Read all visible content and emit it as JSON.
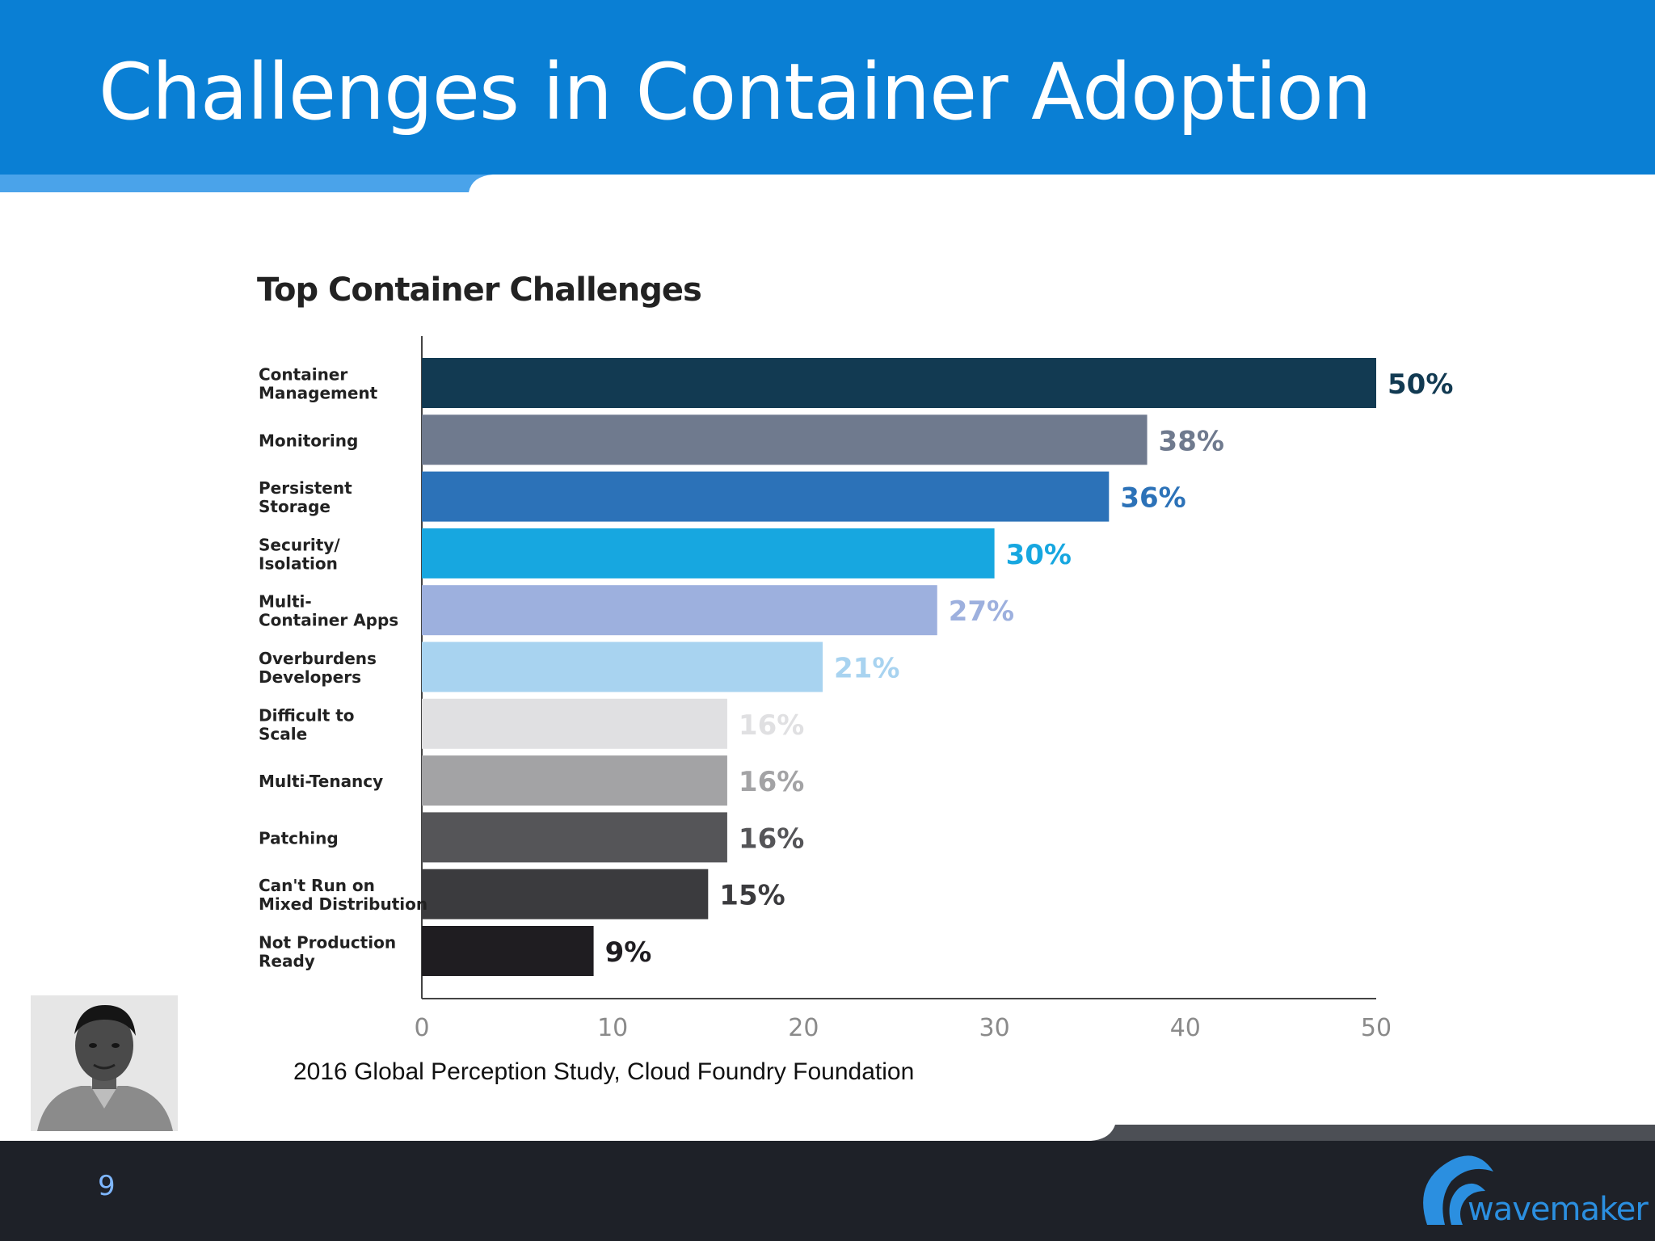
{
  "slide": {
    "title": "Challenges in Container Adoption",
    "page_number": "9",
    "source": "2016 Global Perception Study, Cloud Foundry Foundation",
    "logo_text": "wavemaker",
    "colors": {
      "header": "#0a7fd4",
      "header_accent": "#4aa3ea",
      "footer": "#1e2128",
      "page_number": "#7fb7ff",
      "logo": "#2b8fe0"
    }
  },
  "chart_data": {
    "type": "bar",
    "orientation": "horizontal",
    "title": "Top Container Challenges",
    "categories": [
      [
        "Container",
        "Management"
      ],
      [
        "Monitoring"
      ],
      [
        "Persistent",
        "Storage"
      ],
      [
        "Security/",
        "Isolation"
      ],
      [
        "Multi-",
        "Container Apps"
      ],
      [
        "Overburdens",
        "Developers"
      ],
      [
        "Difficult to",
        "Scale"
      ],
      [
        "Multi-Tenancy"
      ],
      [
        "Patching"
      ],
      [
        "Can't Run on",
        "Mixed Distribution"
      ],
      [
        "Not Production",
        "Ready"
      ]
    ],
    "values": [
      50,
      38,
      36,
      30,
      27,
      21,
      16,
      16,
      16,
      15,
      9
    ],
    "value_labels": [
      "50%",
      "38%",
      "36%",
      "30%",
      "27%",
      "21%",
      "16%",
      "16%",
      "16%",
      "15%",
      "9%"
    ],
    "bar_colors": [
      "#123a52",
      "#6f7a8e",
      "#2c72b8",
      "#17a7e0",
      "#9db0de",
      "#a8d3f0",
      "#e0e0e2",
      "#a3a3a5",
      "#555558",
      "#3b3b3e",
      "#1f1d21"
    ],
    "label_colors": [
      "#123a52",
      "#6f7a8e",
      "#2c72b8",
      "#17a7e0",
      "#9db0de",
      "#a8d3f0",
      "#e0e0e2",
      "#a3a3a5",
      "#555558",
      "#3b3b3e",
      "#1f1d21"
    ],
    "xticks": [
      0,
      10,
      20,
      30,
      40,
      50
    ],
    "xlim": [
      0,
      50
    ],
    "xlabel": "",
    "ylabel": "",
    "grid": false,
    "legend": "none"
  }
}
